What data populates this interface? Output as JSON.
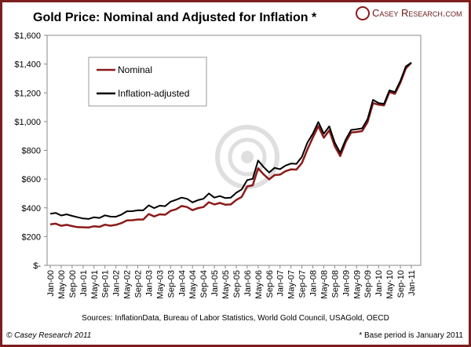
{
  "chart_data": {
    "type": "line",
    "title": "Gold Price: Nominal and Adjusted for Inflation *",
    "brand": "Casey Research.com",
    "source": "Sources: InflationData, Bureau of Labor Statistics, World Gold Council, USAGold, OECD",
    "copyright": "© Casey Research 2011",
    "footnote": "* Base period is January 2011",
    "categories": [
      "Jan-00",
      null,
      "May-00",
      null,
      "Sep-00",
      null,
      "Jan-01",
      null,
      "May-01",
      null,
      "Sep-01",
      null,
      "Jan-02",
      null,
      "May-02",
      null,
      "Sep-02",
      null,
      "Jan-03",
      null,
      "May-03",
      null,
      "Sep-03",
      null,
      "Jan-04",
      null,
      "May-04",
      null,
      "Sep-04",
      null,
      "Jan-05",
      null,
      "May-05",
      null,
      "Sep-05",
      null,
      "Jan-06",
      null,
      "May-06",
      null,
      "Sep-06",
      null,
      "Jan-07",
      null,
      "May-07",
      null,
      "Sep-07",
      null,
      "Jan-08",
      null,
      "May-08",
      null,
      "Sep-08",
      null,
      "Jan-09",
      null,
      "May-09",
      null,
      "Sep-09",
      null,
      "Jan-10",
      null,
      "May-10",
      null,
      "Sep-10",
      null,
      "Jan-11"
    ],
    "series": [
      {
        "name": "Nominal",
        "color": "#8b1a1a",
        "values": [
          285,
          290,
          275,
          282,
          273,
          266,
          265,
          263,
          272,
          268,
          283,
          276,
          282,
          294,
          313,
          314,
          319,
          319,
          357,
          340,
          355,
          352,
          379,
          390,
          413,
          406,
          384,
          398,
          406,
          439,
          424,
          434,
          422,
          424,
          455,
          476,
          549,
          557,
          675,
          633,
          598,
          628,
          631,
          655,
          668,
          666,
          712,
          806,
          889,
          968,
          888,
          939,
          829,
          760,
          858,
          924,
          928,
          934,
          996,
          1128,
          1118,
          1113,
          1205,
          1193,
          1271,
          1370,
          1410
        ]
      },
      {
        "name": "Inflation-adjusted",
        "color": "#000000",
        "values": [
          359,
          365,
          347,
          355,
          344,
          335,
          326,
          323,
          335,
          330,
          348,
          339,
          338,
          353,
          376,
          377,
          383,
          383,
          418,
          398,
          415,
          412,
          443,
          456,
          471,
          463,
          438,
          454,
          463,
          500,
          471,
          482,
          468,
          471,
          505,
          528,
          593,
          602,
          729,
          684,
          646,
          678,
          669,
          694,
          708,
          706,
          755,
          854,
          916,
          997,
          915,
          967,
          854,
          783,
          875,
          942,
          947,
          953,
          1016,
          1151,
          1129,
          1124,
          1217,
          1205,
          1284,
          1384,
          1410
        ]
      }
    ],
    "ylim": [
      0,
      1600
    ],
    "yticks": [
      {
        "value": 0,
        "label": "$-"
      },
      {
        "value": 200,
        "label": "$200"
      },
      {
        "value": 400,
        "label": "$400"
      },
      {
        "value": 600,
        "label": "$600"
      },
      {
        "value": 800,
        "label": "$800"
      },
      {
        "value": 1000,
        "label": "$1,000"
      },
      {
        "value": 1200,
        "label": "$1,200"
      },
      {
        "value": 1400,
        "label": "$1,400"
      },
      {
        "value": 1600,
        "label": "$1,600"
      }
    ]
  }
}
